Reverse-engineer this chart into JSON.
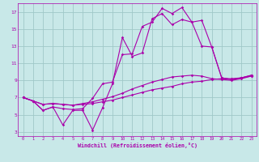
{
  "background_color": "#c8e8e8",
  "grid_color": "#a0c8c8",
  "line_color": "#aa00aa",
  "xlim": [
    -0.5,
    23.5
  ],
  "ylim": [
    2.5,
    18.0
  ],
  "xticks": [
    0,
    1,
    2,
    3,
    4,
    5,
    6,
    7,
    8,
    9,
    10,
    11,
    12,
    13,
    14,
    15,
    16,
    17,
    18,
    19,
    20,
    21,
    22,
    23
  ],
  "yticks": [
    3,
    5,
    7,
    9,
    11,
    13,
    15,
    17
  ],
  "xlabel": "Windchill (Refroidissement éolien,°C)",
  "series": [
    [
      7.0,
      6.6,
      6.2,
      6.3,
      6.2,
      6.1,
      6.2,
      6.3,
      6.5,
      6.7,
      7.0,
      7.3,
      7.6,
      7.9,
      8.1,
      8.3,
      8.6,
      8.8,
      8.9,
      9.1,
      9.2,
      9.2,
      9.3,
      9.5
    ],
    [
      7.0,
      6.6,
      6.2,
      6.3,
      6.2,
      6.1,
      6.3,
      6.5,
      6.8,
      7.1,
      7.5,
      8.0,
      8.4,
      8.8,
      9.1,
      9.4,
      9.5,
      9.6,
      9.5,
      9.2,
      9.1,
      9.0,
      9.2,
      9.5
    ],
    [
      7.0,
      6.6,
      5.5,
      5.9,
      5.7,
      5.6,
      5.7,
      6.9,
      8.6,
      8.8,
      12.0,
      12.1,
      15.3,
      15.8,
      17.4,
      16.8,
      17.5,
      15.8,
      13.0,
      12.9,
      9.3,
      9.1,
      9.3,
      9.6
    ],
    [
      7.0,
      6.6,
      5.5,
      5.9,
      3.8,
      5.5,
      5.5,
      3.2,
      5.8,
      8.6,
      14.0,
      11.8,
      12.2,
      16.2,
      16.8,
      15.5,
      16.1,
      15.8,
      16.0,
      12.9,
      9.3,
      9.1,
      9.3,
      9.6
    ]
  ]
}
